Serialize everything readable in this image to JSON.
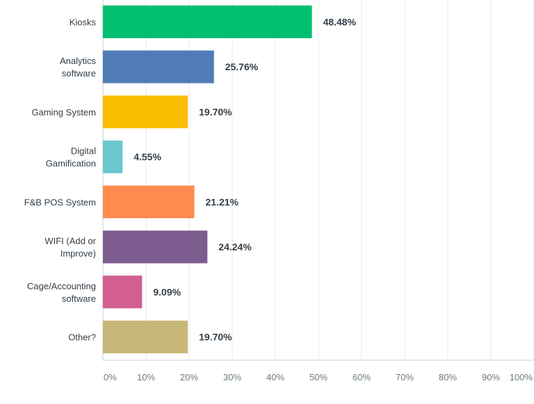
{
  "chart_data": {
    "type": "bar",
    "orientation": "horizontal",
    "categories": [
      [
        "Kiosks"
      ],
      [
        "Analytics",
        "software"
      ],
      [
        "Gaming System"
      ],
      [
        "Digital",
        "Gamification"
      ],
      [
        "F&B POS System"
      ],
      [
        "WIFI (Add or",
        "Improve)"
      ],
      [
        "Cage/Accounting",
        "software"
      ],
      [
        "Other?"
      ]
    ],
    "values": [
      48.48,
      25.76,
      19.7,
      4.55,
      21.21,
      24.24,
      9.09,
      19.7
    ],
    "value_labels": [
      "48.48%",
      "25.76%",
      "19.70%",
      "4.55%",
      "21.21%",
      "24.24%",
      "9.09%",
      "19.70%"
    ],
    "colors": [
      "#00bf6f",
      "#507cb6",
      "#f9be00",
      "#6bc8cd",
      "#ff8b4f",
      "#7d5c90",
      "#d25f90",
      "#c7b879"
    ],
    "xlim": [
      0,
      100
    ],
    "x_ticks": [
      "0%",
      "10%",
      "20%",
      "30%",
      "40%",
      "50%",
      "60%",
      "70%",
      "80%",
      "90%",
      "100%"
    ],
    "grid": true,
    "title": "",
    "xlabel": "",
    "ylabel": ""
  }
}
